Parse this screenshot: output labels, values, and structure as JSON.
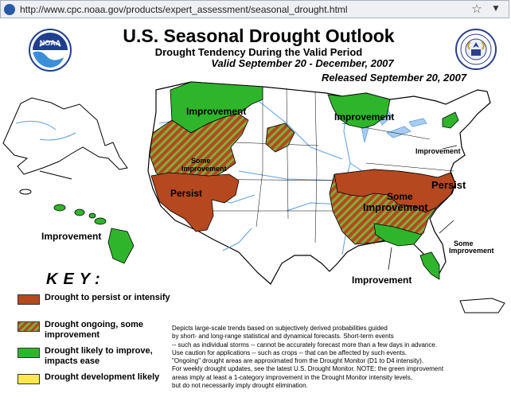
{
  "browser": {
    "url": "http://www.cpc.noaa.gov/products/expert_assessment/seasonal_drought.html",
    "favicon_icon": "noaa-favicon-icon",
    "star_icon": "bookmark-star-icon",
    "dropdown_icon": "dropdown-arrow-icon"
  },
  "header": {
    "title": "U.S. Seasonal Drought Outlook",
    "subtitle": "Drought Tendency During the Valid Period",
    "valid": "Valid September 20 - December, 2007",
    "released": "Released September 20, 2007",
    "left_logo_text": "NOAA"
  },
  "map": {
    "labels": {
      "nw_improvement": "Improvement",
      "ne_improvement": "Improvement",
      "some_improvement_west_1": "Some",
      "some_improvement_west_2": "Improvement",
      "persist_west": "Persist",
      "east_improvement": "Improvement",
      "some_improvement_se_1": "Some",
      "some_improvement_se_2": "Improvement",
      "persist_east": "Persist",
      "fl_some_1": "Some",
      "fl_some_2": "Improvement",
      "gulf_improvement": "Improvement",
      "hawaii_improvement": "Improvement"
    },
    "colors": {
      "persist": "#b5481f",
      "improve": "#2fb52b",
      "ongoing_brown": "#b5481f",
      "ongoing_green": "#7fae3a",
      "develop": "#ffe84a",
      "water": "#a9cdf0",
      "rivers": "#5b9fe0"
    }
  },
  "key": {
    "title": "KEY:",
    "items": [
      {
        "id": "persist",
        "label": "Drought to persist or intensify"
      },
      {
        "id": "ongoing",
        "label": "Drought ongoing, some improvement"
      },
      {
        "id": "improve",
        "label": "Drought likely to improve, impacts ease"
      },
      {
        "id": "develop",
        "label": "Drought development likely"
      }
    ]
  },
  "notes": [
    "Depicts large-scale trends based on subjectively derived probabilities guided",
    "by short- and long-range statistical and dynamical forecasts. Short-term events",
    "-- such as individual storms -- cannot be accurately forecast more than a few days in advance.",
    "Use caution for applications -- such as crops -- that can be affected by such events.",
    "\"Ongoing\" drought areas are approximated from the Drought Monitor (D1 to D4 intensity).",
    "For weekly drought updates, see the latest U.S. Drought Monitor. NOTE: the green improvement",
    "areas imply at least a 1-category improvement in the Drought Monitor intensity levels,",
    "but do not necessarily imply drought elimination."
  ]
}
